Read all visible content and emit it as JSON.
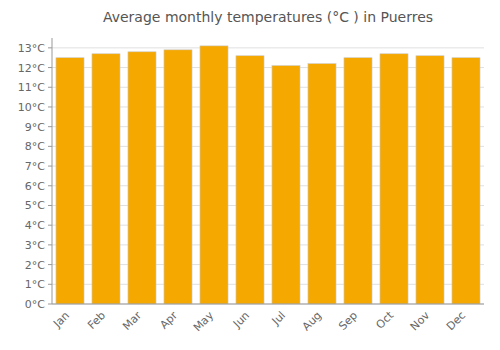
{
  "chart_data": {
    "type": "bar",
    "title": "Average monthly temperatures (°C ) in Puerres",
    "categories": [
      "Jan",
      "Feb",
      "Mar",
      "Apr",
      "May",
      "Jun",
      "Jul",
      "Aug",
      "Sep",
      "Oct",
      "Nov",
      "Dec"
    ],
    "values": [
      12.5,
      12.7,
      12.8,
      12.9,
      13.1,
      12.6,
      12.1,
      12.2,
      12.5,
      12.7,
      12.6,
      12.5
    ],
    "color": "#F5A800",
    "ylim": [
      0,
      13.5
    ],
    "yticks": [
      {
        "value": 0,
        "label": "0°C"
      },
      {
        "value": 1,
        "label": "1°C"
      },
      {
        "value": 2,
        "label": "2°C"
      },
      {
        "value": 3,
        "label": "3°C"
      },
      {
        "value": 4,
        "label": "4°C"
      },
      {
        "value": 5,
        "label": "5°C"
      },
      {
        "value": 6,
        "label": "6°C"
      },
      {
        "value": 7,
        "label": "7°C"
      },
      {
        "value": 8,
        "label": "8°C"
      },
      {
        "value": 9,
        "label": "9°C"
      },
      {
        "value": 10,
        "label": "10°C"
      },
      {
        "value": 11,
        "label": "11°C"
      },
      {
        "value": 12,
        "label": "12°C"
      },
      {
        "value": 13,
        "label": "13°C"
      }
    ],
    "grid": true
  }
}
